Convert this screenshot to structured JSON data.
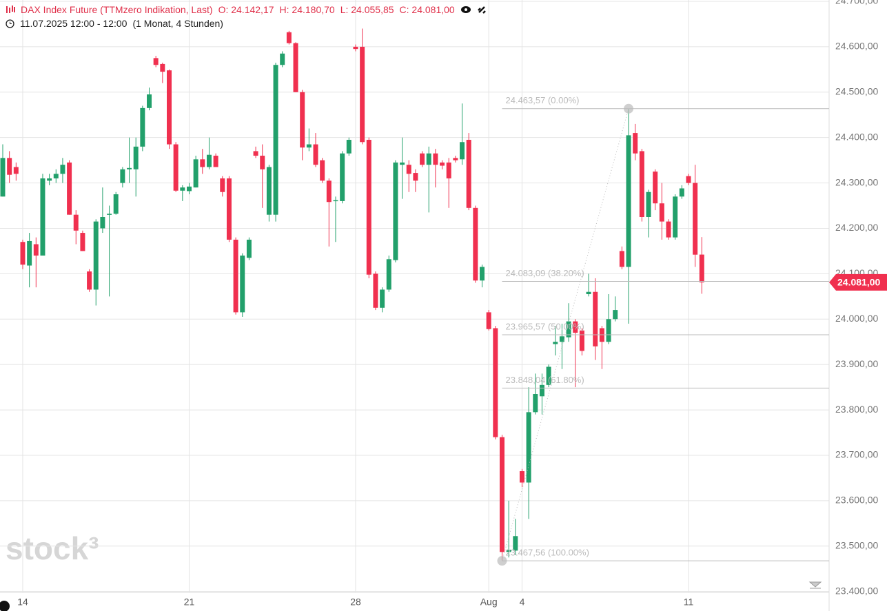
{
  "chart_data": {
    "type": "candlestick",
    "title": "DAX Index Future (TTMzero Indikation, Last)",
    "ohlc_texts": [
      "O: 24.142,17",
      "H: 24.180,70",
      "L: 24.055,85",
      "C: 24.081,00"
    ],
    "period": "11.07.2025 12:00 - 12:00",
    "range": "(1 Monat, 4 Stunden)",
    "watermark": "stock³",
    "up_color": "#22a06b",
    "down_color": "#f0304f",
    "grid": true,
    "categories": [
      null,
      null,
      null,
      "14",
      null,
      null,
      null,
      null,
      null,
      null,
      null,
      null,
      null,
      null,
      null,
      null,
      null,
      null,
      null,
      null,
      null,
      null,
      null,
      null,
      null,
      null,
      null,
      null,
      "21",
      null,
      null,
      null,
      null,
      null,
      null,
      null,
      null,
      null,
      null,
      null,
      null,
      null,
      null,
      null,
      null,
      null,
      null,
      null,
      null,
      null,
      null,
      null,
      null,
      "28",
      null,
      null,
      null,
      null,
      null,
      null,
      null,
      null,
      null,
      null,
      null,
      null,
      null,
      null,
      null,
      null,
      null,
      null,
      null,
      "Aug",
      null,
      null,
      null,
      null,
      "4",
      null,
      null,
      null,
      null,
      null,
      null,
      null,
      null,
      null,
      null,
      null,
      null,
      null,
      null,
      null,
      null,
      null,
      null,
      null,
      null,
      null,
      null,
      null,
      null,
      "11",
      null,
      null
    ],
    "open": [
      24270,
      24355,
      24335,
      24170,
      24118,
      24165,
      24140,
      24305,
      24310,
      24320,
      24345,
      24230,
      24190,
      24105,
      24065,
      24200,
      24230,
      24232,
      24300,
      24330,
      24330,
      24380,
      24465,
      24575,
      24562,
      24548,
      24385,
      24283,
      24282,
      24290,
      24352,
      24335,
      24360,
      24310,
      24310,
      24175,
      24015,
      24135,
      24370,
      24360,
      24230,
      24230,
      24560,
      24632,
      24608,
      24500,
      24378,
      24385,
      24350,
      24305,
      24260,
      24260,
      24365,
      24600,
      24600,
      24395,
      24100,
      24025,
      24065,
      24130,
      24340,
      24340,
      24322,
      24365,
      24340,
      24365,
      24345,
      24345,
      24355,
      24352,
      24395,
      24245,
      24085,
      24015,
      23980,
      23740,
      23487,
      23490,
      23665,
      23640,
      23795,
      23830,
      23855,
      23945,
      23950,
      23960,
      23995,
      23975,
      24055,
      24060,
      23980,
      23950,
      24000,
      24150,
      24115,
      24410,
      24370,
      24225,
      24325,
      24255,
      24215,
      24180,
      24270,
      24315,
      24300,
      24142.17
    ],
    "high": [
      24385,
      24370,
      24345,
      24175,
      24190,
      24180,
      24320,
      24320,
      24330,
      24355,
      24350,
      24240,
      24195,
      24110,
      24220,
      24290,
      24250,
      24280,
      24335,
      24400,
      24400,
      24470,
      24510,
      24580,
      24565,
      24550,
      24390,
      24295,
      24300,
      24360,
      24375,
      24400,
      24365,
      24315,
      24315,
      24180,
      24145,
      24180,
      24380,
      24385,
      24340,
      24565,
      24590,
      24635,
      24610,
      24505,
      24420,
      24410,
      24355,
      24310,
      24270,
      24370,
      24400,
      24605,
      24640,
      24400,
      24105,
      24070,
      24140,
      24350,
      24400,
      24350,
      24330,
      24370,
      24380,
      24375,
      24350,
      24355,
      24360,
      24475,
      24410,
      24250,
      24120,
      24020,
      23985,
      23745,
      23600,
      23560,
      23670,
      23850,
      23880,
      23880,
      23900,
      23985,
      23990,
      24035,
      24000,
      23980,
      24100,
      24090,
      23985,
      24055,
      24050,
      24160,
      24463.57,
      24430,
      24375,
      24285,
      24330,
      24300,
      24220,
      24275,
      24295,
      24320,
      24340,
      24180.7
    ],
    "low": [
      24270,
      24300,
      24305,
      24110,
      24070,
      24070,
      24140,
      24295,
      24300,
      24300,
      24230,
      24165,
      24150,
      24060,
      24030,
      24190,
      24050,
      24230,
      24290,
      24300,
      24270,
      24370,
      24460,
      24555,
      24520,
      24375,
      24280,
      24260,
      24275,
      24290,
      24320,
      24330,
      24335,
      24270,
      24170,
      24010,
      24005,
      24130,
      24355,
      24245,
      24215,
      24215,
      24555,
      24605,
      24500,
      24350,
      24370,
      24335,
      24300,
      24160,
      24170,
      24255,
      24360,
      24590,
      24385,
      24090,
      24020,
      24015,
      24060,
      24125,
      24265,
      24280,
      24280,
      24335,
      24235,
      24290,
      24330,
      24245,
      24345,
      24340,
      24240,
      24080,
      24070,
      23975,
      23735,
      23467.56,
      23475,
      23480,
      23630,
      23560,
      23790,
      23790,
      23850,
      23920,
      23890,
      23950,
      23850,
      23920,
      24050,
      23910,
      23890,
      23945,
      23995,
      24110,
      23990,
      24350,
      24215,
      24180,
      24240,
      24175,
      24175,
      24175,
      24265,
      24295,
      24115,
      24055.85
    ],
    "close": [
      24355,
      24318,
      24320,
      24120,
      24172,
      24140,
      24310,
      24310,
      24320,
      24340,
      24230,
      24195,
      24150,
      24065,
      24215,
      24225,
      24232,
      24275,
      24330,
      24333,
      24380,
      24465,
      24495,
      24560,
      24545,
      24385,
      24283,
      24290,
      24292,
      24352,
      24335,
      24362,
      24335,
      24280,
      24175,
      24015,
      24140,
      24175,
      24360,
      24330,
      24335,
      24560,
      24585,
      24608,
      24500,
      24378,
      24385,
      24340,
      24305,
      24258,
      24262,
      24365,
      24395,
      24595,
      24390,
      24098,
      24025,
      24065,
      24132,
      24345,
      24345,
      24320,
      24305,
      24340,
      24365,
      24340,
      24338,
      24310,
      24350,
      24390,
      24245,
      24085,
      24115,
      23978,
      23740,
      23487,
      23492,
      23522,
      23640,
      23795,
      23835,
      23855,
      23895,
      23950,
      23962,
      23995,
      23970,
      23930,
      24060,
      23940,
      23950,
      24000,
      24020,
      24115,
      24405,
      24365,
      24225,
      24280,
      24255,
      24215,
      24180,
      24270,
      24288,
      24300,
      24142,
      24081
    ],
    "ylim": [
      23357,
      24703
    ],
    "yticks": [
      {
        "value": 24700,
        "label": "24.700,00"
      },
      {
        "value": 24600,
        "label": "24.600,00"
      },
      {
        "value": 24500,
        "label": "24.500,00"
      },
      {
        "value": 24400,
        "label": "24.400,00"
      },
      {
        "value": 24300,
        "label": "24.300,00"
      },
      {
        "value": 24200,
        "label": "24.200,00"
      },
      {
        "value": 24100,
        "label": "24.100,00"
      },
      {
        "value": 24000,
        "label": "24.000,00"
      },
      {
        "value": 23900,
        "label": "23.900,00"
      },
      {
        "value": 23800,
        "label": "23.800,00"
      },
      {
        "value": 23700,
        "label": "23.700,00"
      },
      {
        "value": 23600,
        "label": "23.600,00"
      },
      {
        "value": 23500,
        "label": "23.500,00"
      },
      {
        "value": 23400,
        "label": "23.400,00"
      }
    ],
    "last_price": {
      "value": 24081,
      "label": "24.081,00"
    },
    "fib_levels": [
      {
        "value": 24463.57,
        "label": "24.463,57 (0.00%)"
      },
      {
        "value": 24083.09,
        "label": "24.083,09 (38.20%)"
      },
      {
        "value": 23965.57,
        "label": "23.965,57 (50.00%)"
      },
      {
        "value": 23848.04,
        "label": "23.848,04 (61.80%)"
      },
      {
        "value": 23467.56,
        "label": "23.467,56 (100.00%)"
      }
    ]
  }
}
